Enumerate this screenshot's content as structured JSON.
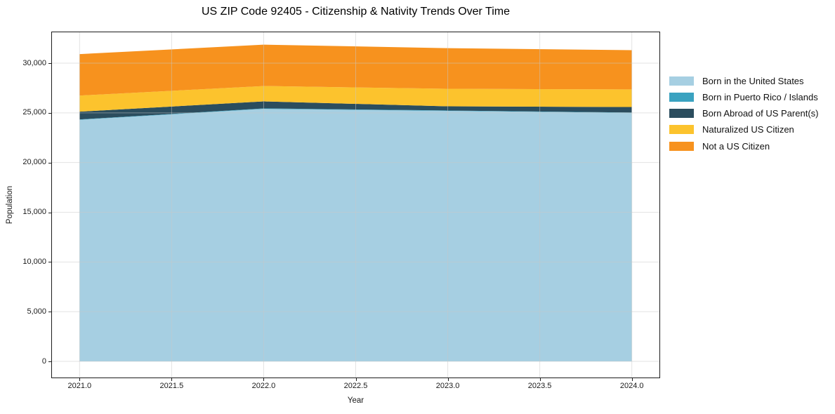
{
  "title": "US ZIP Code 92405 - Citizenship & Nativity Trends Over Time",
  "chart_data": {
    "type": "area",
    "stacked": true,
    "title": "US ZIP Code 92405 - Citizenship & Nativity Trends Over Time",
    "xlabel": "Year",
    "ylabel": "Population",
    "x": [
      2021,
      2022,
      2023,
      2024
    ],
    "series": [
      {
        "name": "Born in the United States",
        "color": "#a6cfe2",
        "values": [
          24300,
          25400,
          25200,
          25000
        ]
      },
      {
        "name": "Born in Puerto Rico / Islands",
        "color": "#3aa2c0",
        "values": [
          40,
          50,
          40,
          30
        ]
      },
      {
        "name": "Born Abroad of US Parent(s)",
        "color": "#2b4d5e",
        "values": [
          780,
          700,
          420,
          560
        ]
      },
      {
        "name": "Naturalized US Citizen",
        "color": "#fcc32d",
        "values": [
          1620,
          1550,
          1760,
          1770
        ]
      },
      {
        "name": "Not a US Citizen",
        "color": "#f7921e",
        "values": [
          4170,
          4160,
          4090,
          3950
        ]
      }
    ],
    "totals": [
      30910,
      31860,
      31510,
      31310
    ],
    "xticks": {
      "values": [
        2021.0,
        2021.5,
        2022.0,
        2022.5,
        2023.0,
        2023.5,
        2024.0
      ],
      "labels": [
        "2021.0",
        "2021.5",
        "2022.0",
        "2022.5",
        "2023.0",
        "2023.5",
        "2024.0"
      ]
    },
    "yticks": {
      "values": [
        0,
        5000,
        10000,
        15000,
        20000,
        25000,
        30000
      ],
      "labels": [
        "0",
        "5,000",
        "10,000",
        "15,000",
        "20,000",
        "25,000",
        "30,000"
      ]
    },
    "xlim": [
      2020.85,
      2024.15
    ],
    "ylim": [
      -1623,
      33106
    ],
    "grid": true,
    "grid_color": "#c8c8c8",
    "spine_color": "#1c1c1c",
    "legend_position": "right-outside"
  }
}
